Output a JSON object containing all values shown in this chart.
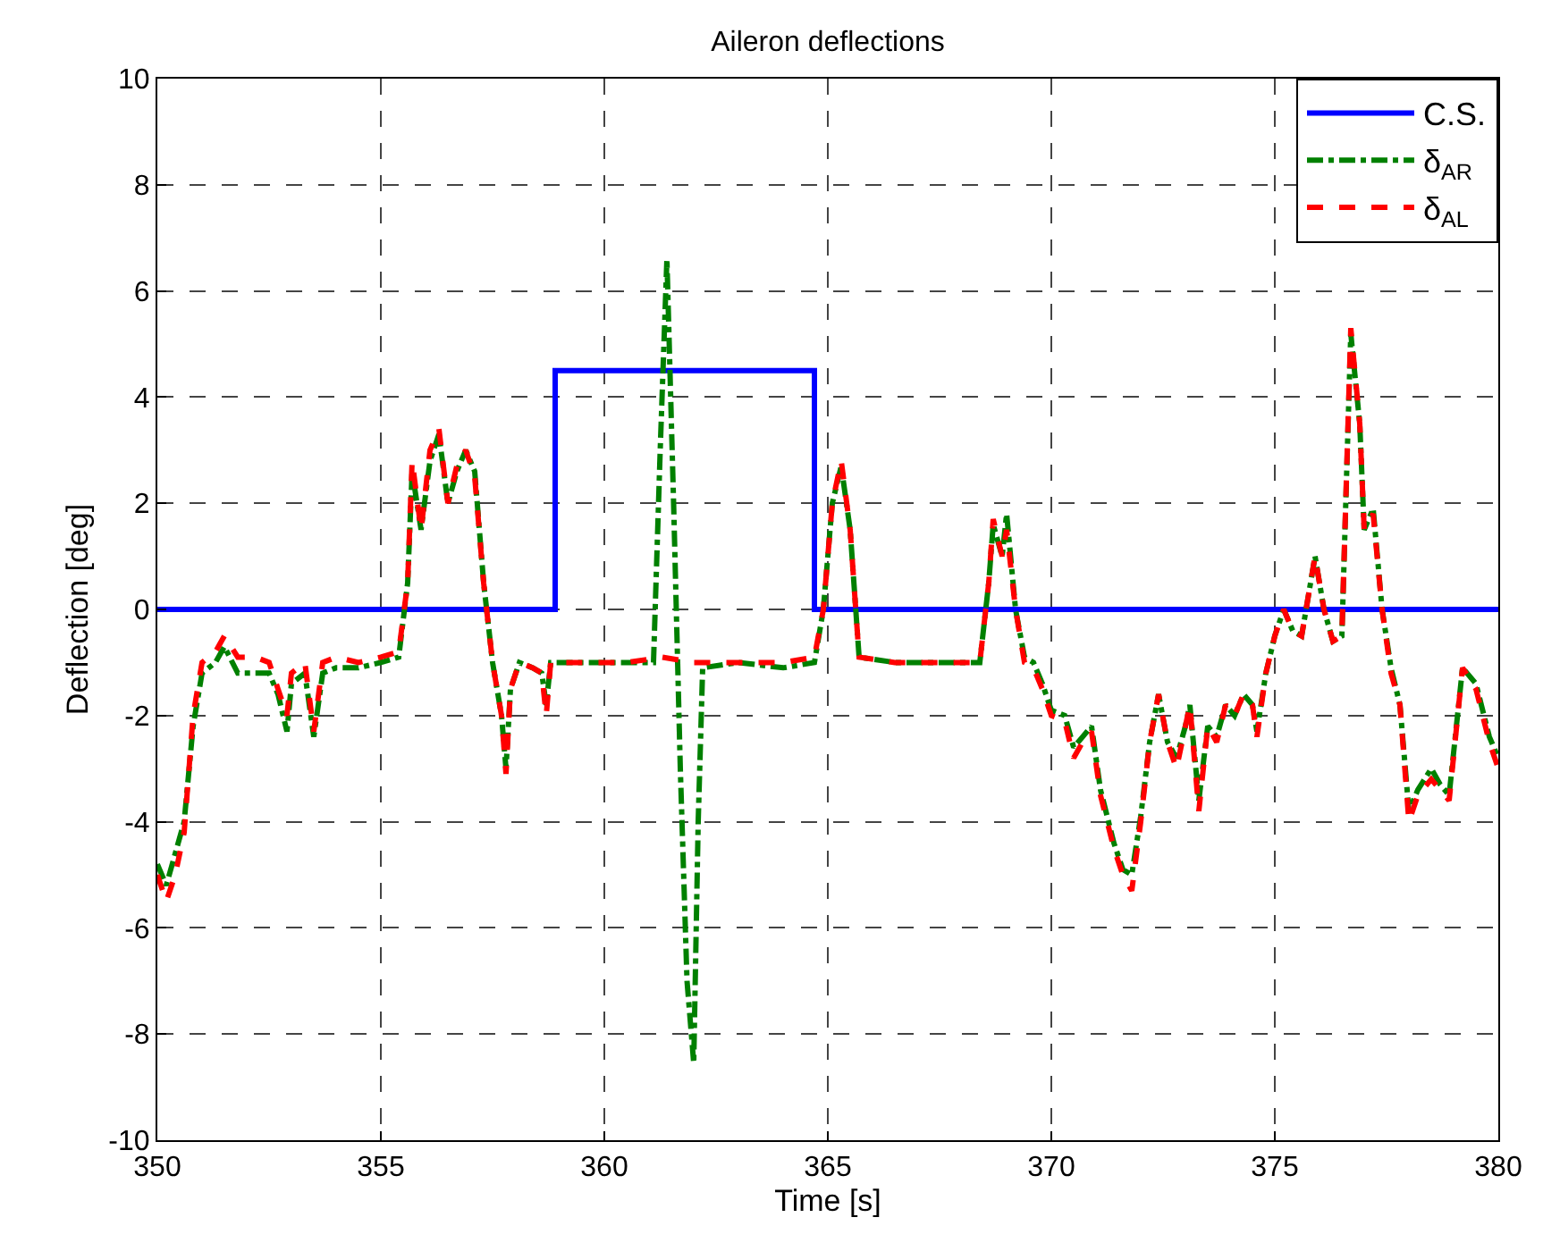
{
  "chart_data": {
    "type": "line",
    "title": "Aileron deflections",
    "xlabel": "Time [s]",
    "ylabel": "Deflection [deg]",
    "xlim": [
      350,
      380
    ],
    "xticks": [
      350,
      355,
      360,
      365,
      370,
      375,
      380
    ],
    "ylim": [
      -10,
      10
    ],
    "yticks": [
      -10,
      -8,
      -6,
      -4,
      -2,
      0,
      2,
      4,
      6,
      8,
      10
    ],
    "grid": true,
    "legend": "top right",
    "marker": "none",
    "series": [
      {
        "name": "C.S.",
        "color": "#0000ff",
        "line_style": "solid",
        "x": [
          350,
          358.9,
          358.9,
          364.7,
          364.7,
          380
        ],
        "values": [
          0,
          0,
          4.5,
          4.5,
          0,
          0
        ]
      },
      {
        "name": "δ$_{AR}$",
        "color": "#008000",
        "line_style": "dashdot",
        "x": [
          350.0,
          350.2,
          350.4,
          350.6,
          350.8,
          351.0,
          351.3,
          351.5,
          351.8,
          352.2,
          352.5,
          352.7,
          352.9,
          353.0,
          353.3,
          353.5,
          353.7,
          354.0,
          354.5,
          355.0,
          355.4,
          355.6,
          355.7,
          355.9,
          356.1,
          356.3,
          356.5,
          356.7,
          356.9,
          357.1,
          357.3,
          357.5,
          357.7,
          357.8,
          357.9,
          358.1,
          358.4,
          358.6,
          358.7,
          358.8,
          359.5,
          360.5,
          361.1,
          361.25,
          361.4,
          361.55,
          361.7,
          361.85,
          362.0,
          362.1,
          362.2,
          363.0,
          364.0,
          364.7,
          364.9,
          365.1,
          365.3,
          365.5,
          365.7,
          366.5,
          367.5,
          368.4,
          368.6,
          368.7,
          368.9,
          369.0,
          369.2,
          369.4,
          369.6,
          369.8,
          370.0,
          370.3,
          370.5,
          370.7,
          370.9,
          371.1,
          371.4,
          371.6,
          371.8,
          372.0,
          372.2,
          372.4,
          372.6,
          372.8,
          373.0,
          373.1,
          373.3,
          373.5,
          373.7,
          373.9,
          374.1,
          374.3,
          374.5,
          374.6,
          374.8,
          375.0,
          375.2,
          375.4,
          375.6,
          375.8,
          375.9,
          376.1,
          376.3,
          376.5,
          376.7,
          376.9,
          377.0,
          377.2,
          377.4,
          377.6,
          377.8,
          378.0,
          378.2,
          378.5,
          378.7,
          378.9,
          379.2,
          379.5,
          379.8,
          380.0
        ],
        "values": [
          -4.8,
          -5.2,
          -4.6,
          -4.0,
          -2.2,
          -1.2,
          -1.0,
          -0.7,
          -1.2,
          -1.2,
          -1.2,
          -1.6,
          -2.3,
          -1.4,
          -1.2,
          -2.4,
          -1.2,
          -1.1,
          -1.1,
          -1.0,
          -0.9,
          0.5,
          2.6,
          1.5,
          2.8,
          3.3,
          2.0,
          2.6,
          3.0,
          2.6,
          0.5,
          -1.0,
          -2.0,
          -3.0,
          -1.5,
          -1.0,
          -1.1,
          -1.2,
          -1.8,
          -1.0,
          -1.0,
          -1.0,
          -1.0,
          3.0,
          6.6,
          2.0,
          -3.0,
          -7.0,
          -8.55,
          -4.0,
          -1.1,
          -1.0,
          -1.1,
          -1.0,
          0.0,
          2.0,
          2.7,
          1.5,
          -0.9,
          -1.0,
          -1.0,
          -1.0,
          0.5,
          1.6,
          1.0,
          1.8,
          0.0,
          -0.9,
          -1.0,
          -1.4,
          -1.9,
          -2.0,
          -2.6,
          -2.4,
          -2.2,
          -3.4,
          -4.4,
          -4.9,
          -5.0,
          -3.9,
          -2.5,
          -1.6,
          -2.5,
          -2.8,
          -2.2,
          -1.8,
          -3.6,
          -2.2,
          -2.4,
          -1.8,
          -2.0,
          -1.6,
          -1.8,
          -2.3,
          -1.2,
          -0.5,
          0.0,
          -0.4,
          -0.5,
          0.5,
          1.0,
          0.0,
          -0.6,
          -0.5,
          5.2,
          3.5,
          1.5,
          1.9,
          0.0,
          -1.1,
          -1.8,
          -3.8,
          -3.4,
          -3.0,
          -3.3,
          -3.5,
          -1.1,
          -1.4,
          -2.4,
          -2.8
        ]
      },
      {
        "name": "δ$_{AL}$",
        "color": "#ff0000",
        "line_style": "dashed",
        "x": [
          350.0,
          350.2,
          350.4,
          350.6,
          350.8,
          351.0,
          351.3,
          351.5,
          351.8,
          352.2,
          352.5,
          352.7,
          352.9,
          353.0,
          353.3,
          353.5,
          353.7,
          354.0,
          354.5,
          355.0,
          355.4,
          355.6,
          355.7,
          355.9,
          356.1,
          356.3,
          356.5,
          356.7,
          356.9,
          357.1,
          357.3,
          357.5,
          357.7,
          357.8,
          357.9,
          358.1,
          358.4,
          358.6,
          358.7,
          358.8,
          359.5,
          360.5,
          361.3,
          362.0,
          363.0,
          364.0,
          364.7,
          364.9,
          365.1,
          365.3,
          365.5,
          365.7,
          366.5,
          367.5,
          368.4,
          368.6,
          368.7,
          368.9,
          369.0,
          369.2,
          369.4,
          369.6,
          369.8,
          370.0,
          370.3,
          370.5,
          370.7,
          370.9,
          371.1,
          371.4,
          371.6,
          371.8,
          372.0,
          372.2,
          372.4,
          372.6,
          372.8,
          373.0,
          373.1,
          373.3,
          373.5,
          373.7,
          373.9,
          374.1,
          374.3,
          374.5,
          374.6,
          374.8,
          375.0,
          375.2,
          375.4,
          375.6,
          375.8,
          375.9,
          376.1,
          376.3,
          376.5,
          376.7,
          376.9,
          377.0,
          377.2,
          377.4,
          377.6,
          377.8,
          378.0,
          378.2,
          378.5,
          378.7,
          378.9,
          379.2,
          379.5,
          379.8,
          380.0
        ],
        "values": [
          -5.0,
          -5.5,
          -5.0,
          -4.2,
          -2.0,
          -1.0,
          -0.8,
          -0.5,
          -0.9,
          -0.9,
          -1.0,
          -1.5,
          -2.0,
          -1.2,
          -1.0,
          -2.3,
          -1.0,
          -0.9,
          -1.0,
          -0.9,
          -0.8,
          0.5,
          2.8,
          1.5,
          3.0,
          3.4,
          2.0,
          2.7,
          3.0,
          2.5,
          0.5,
          -1.0,
          -2.0,
          -3.1,
          -1.5,
          -1.0,
          -1.1,
          -1.2,
          -2.0,
          -1.0,
          -1.0,
          -1.0,
          -0.9,
          -1.0,
          -1.0,
          -1.0,
          -0.9,
          0.0,
          2.0,
          2.8,
          1.5,
          -0.9,
          -1.0,
          -1.0,
          -1.0,
          0.5,
          1.7,
          1.0,
          1.5,
          0.0,
          -1.0,
          -1.1,
          -1.5,
          -2.0,
          -2.1,
          -2.8,
          -2.5,
          -2.3,
          -3.5,
          -4.5,
          -5.0,
          -5.3,
          -4.0,
          -2.5,
          -1.6,
          -2.5,
          -3.0,
          -2.2,
          -1.8,
          -3.8,
          -2.2,
          -2.5,
          -1.8,
          -2.0,
          -1.6,
          -1.8,
          -2.4,
          -1.2,
          -0.5,
          0.0,
          -0.4,
          -0.5,
          0.5,
          1.0,
          0.0,
          -0.6,
          -0.5,
          5.3,
          3.5,
          1.5,
          1.8,
          0.0,
          -1.2,
          -1.8,
          -4.0,
          -3.5,
          -3.2,
          -3.4,
          -3.6,
          -1.1,
          -1.5,
          -2.5,
          -3.0
        ]
      }
    ]
  }
}
